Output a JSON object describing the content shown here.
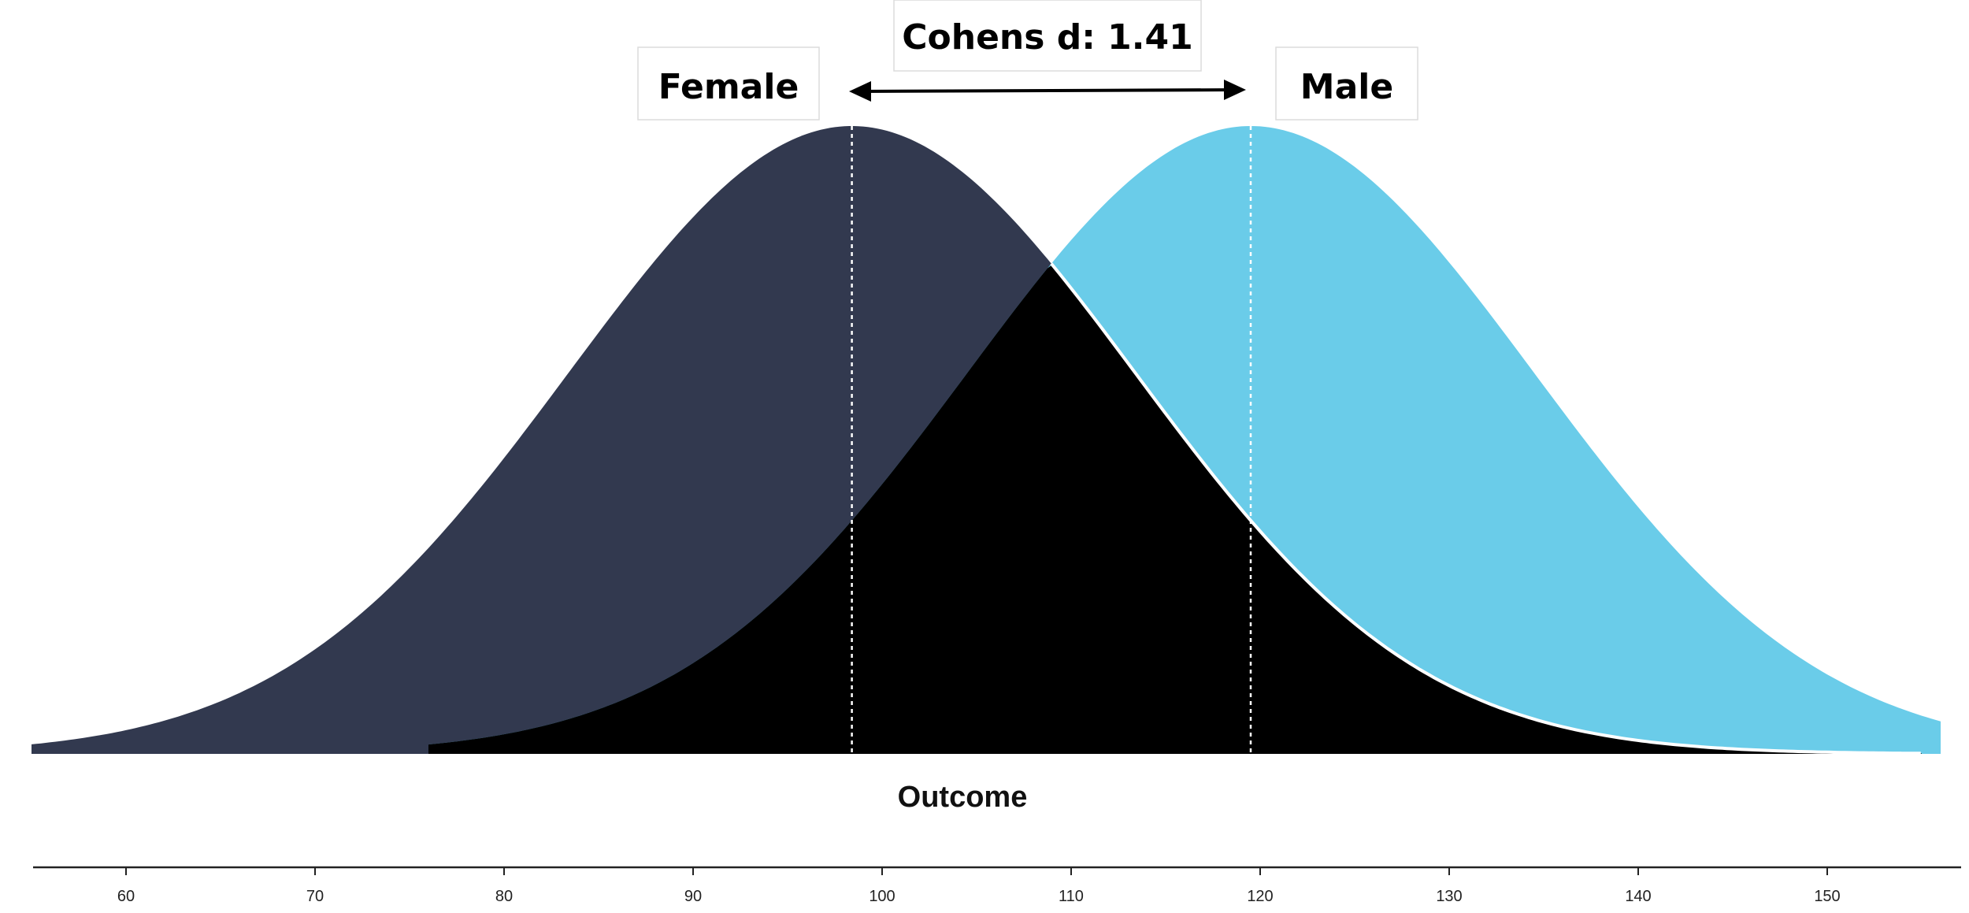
{
  "chart_data": {
    "type": "area",
    "title": "",
    "xlabel": "Outcome",
    "ylabel": "",
    "xlim": [
      55,
      157
    ],
    "x_ticks": [
      60,
      70,
      80,
      90,
      100,
      110,
      120,
      130,
      140,
      150
    ],
    "effect_label": "Cohens d: 1.41",
    "series": [
      {
        "name": "Female",
        "mean": 98.4,
        "sd": 15,
        "range": [
          55,
          155
        ],
        "color": "#32394f"
      },
      {
        "name": "Male",
        "mean": 119.5,
        "sd": 15,
        "range": [
          76,
          156
        ],
        "color": "#6acce9"
      }
    ],
    "overlap_color": "#000000",
    "mean_lines": true,
    "grid": false
  }
}
